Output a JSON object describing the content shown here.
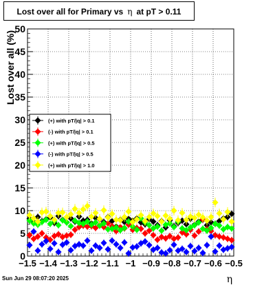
{
  "title": {
    "prefix": "Lost over all for Primary vs",
    "eta_symbol": "η",
    "suffix": "at pT > 0.11"
  },
  "footer": {
    "timestamp": "Sun Jun 29 08:07:20 2025"
  },
  "colors": {
    "black": "#000000",
    "red": "#ff0000",
    "green": "#00ff00",
    "blue": "#0000ff",
    "yellow": "#ffff00"
  },
  "chart_data": {
    "type": "scatter",
    "title": "Lost over all for Primary vs η at pT > 0.11",
    "xlabel": "η",
    "ylabel": "Lost over all (%)",
    "xlim": [
      -1.5,
      -0.5
    ],
    "ylim": [
      0,
      50
    ],
    "x_ticks": [
      -1.5,
      -1.4,
      -1.3,
      -1.2,
      -1.1,
      -1,
      -0.9,
      -0.8,
      -0.7,
      -0.6,
      -0.5
    ],
    "x_tick_labels": [
      "−1.5",
      "−1.4",
      "−1.3",
      "−1.2",
      "−1.1",
      "−1",
      "−0.9",
      "−0.8",
      "−0.7",
      "−0.6",
      "−0.5"
    ],
    "y_ticks": [
      0,
      5,
      10,
      15,
      20,
      25,
      30,
      35,
      40,
      45,
      50
    ],
    "grid": true,
    "legend_position": "left-middle",
    "series": [
      {
        "name": "(+) with pT/|q| > 0.1",
        "color": "#000000",
        "x": [
          -1.49,
          -1.47,
          -1.45,
          -1.43,
          -1.41,
          -1.39,
          -1.37,
          -1.35,
          -1.33,
          -1.31,
          -1.29,
          -1.27,
          -1.25,
          -1.23,
          -1.21,
          -1.19,
          -1.17,
          -1.15,
          -1.13,
          -1.11,
          -1.09,
          -1.07,
          -1.05,
          -1.03,
          -1.01,
          -0.99,
          -0.97,
          -0.95,
          -0.93,
          -0.91,
          -0.89,
          -0.87,
          -0.85,
          -0.83,
          -0.81,
          -0.79,
          -0.77,
          -0.75,
          -0.73,
          -0.71,
          -0.69,
          -0.67,
          -0.65,
          -0.63,
          -0.61,
          -0.59,
          -0.57,
          -0.55,
          -0.53,
          -0.51
        ],
        "y": [
          8.2,
          7.5,
          8.6,
          7.7,
          8.1,
          8.5,
          7.3,
          8.8,
          8.0,
          7.4,
          8.3,
          7.6,
          8.7,
          7.8,
          8.0,
          7.2,
          8.4,
          8.1,
          7.5,
          8.6,
          7.7,
          6.5,
          8.0,
          7.5,
          8.2,
          7.8,
          8.3,
          7.4,
          7.0,
          8.1,
          7.6,
          6.8,
          7.7,
          6.3,
          7.9,
          6.6,
          7.3,
          7.8,
          7.0,
          8.2,
          6.9,
          7.6,
          8.0,
          6.8,
          7.4,
          7.1,
          7.7,
          8.3,
          8.6,
          9.3
        ]
      },
      {
        "name": "(-) with pT/|q| > 0.1",
        "color": "#ff0000",
        "x": [
          -1.49,
          -1.47,
          -1.45,
          -1.43,
          -1.41,
          -1.39,
          -1.37,
          -1.35,
          -1.33,
          -1.31,
          -1.29,
          -1.27,
          -1.25,
          -1.23,
          -1.21,
          -1.19,
          -1.17,
          -1.15,
          -1.13,
          -1.11,
          -1.09,
          -1.07,
          -1.05,
          -1.03,
          -1.01,
          -0.99,
          -0.97,
          -0.95,
          -0.93,
          -0.91,
          -0.89,
          -0.87,
          -0.85,
          -0.83,
          -0.81,
          -0.79,
          -0.77,
          -0.75,
          -0.73,
          -0.71,
          -0.69,
          -0.67,
          -0.65,
          -0.63,
          -0.61,
          -0.59,
          -0.57,
          -0.55,
          -0.53,
          -0.51
        ],
        "y": [
          4.6,
          3.8,
          4.3,
          5.0,
          4.1,
          3.6,
          4.4,
          4.8,
          4.2,
          4.5,
          4.7,
          5.8,
          6.4,
          6.7,
          6.5,
          6.6,
          6.2,
          6.8,
          6.4,
          7.2,
          6.6,
          5.5,
          6.4,
          6.1,
          6.9,
          5.8,
          6.2,
          6.0,
          5.0,
          5.6,
          4.6,
          3.6,
          4.2,
          3.9,
          4.4,
          3.8,
          4.1,
          5.2,
          4.8,
          5.8,
          4.5,
          5.4,
          8.1,
          5.9,
          5.5,
          4.6,
          4.3,
          4.1,
          3.8,
          3.5
        ]
      },
      {
        "name": "(+) with pT/|q| > 0.5",
        "color": "#00ff00",
        "x": [
          -1.49,
          -1.47,
          -1.45,
          -1.43,
          -1.41,
          -1.39,
          -1.37,
          -1.35,
          -1.33,
          -1.31,
          -1.29,
          -1.27,
          -1.25,
          -1.23,
          -1.21,
          -1.19,
          -1.17,
          -1.15,
          -1.13,
          -1.11,
          -1.09,
          -1.07,
          -1.05,
          -1.03,
          -1.01,
          -0.99,
          -0.97,
          -0.95,
          -0.93,
          -0.91,
          -0.89,
          -0.87,
          -0.85,
          -0.83,
          -0.81,
          -0.79,
          -0.77,
          -0.75,
          -0.73,
          -0.71,
          -0.69,
          -0.67,
          -0.65,
          -0.63,
          -0.61,
          -0.59,
          -0.57,
          -0.55,
          -0.53,
          -0.51
        ],
        "y": [
          7.8,
          7.2,
          6.9,
          7.5,
          8.0,
          7.1,
          7.7,
          6.8,
          7.9,
          7.4,
          6.6,
          7.8,
          7.3,
          7.1,
          7.6,
          6.9,
          7.4,
          6.7,
          7.2,
          5.9,
          6.0,
          6.3,
          5.7,
          6.2,
          7.6,
          6.5,
          5.8,
          8.3,
          7.4,
          6.8,
          6.1,
          6.5,
          5.6,
          6.9,
          7.2,
          6.4,
          7.6,
          6.1,
          5.7,
          6.3,
          6.8,
          7.4,
          6.0,
          5.6,
          6.2,
          7.1,
          6.7,
          5.9,
          6.4,
          6.1
        ]
      },
      {
        "name": "(-) with pT/|q| > 0.5",
        "color": "#0000ff",
        "x": [
          -1.49,
          -1.47,
          -1.45,
          -1.43,
          -1.41,
          -1.39,
          -1.37,
          -1.35,
          -1.33,
          -1.31,
          -1.29,
          -1.27,
          -1.25,
          -1.23,
          -1.21,
          -1.19,
          -1.17,
          -1.15,
          -1.13,
          -1.11,
          -1.09,
          -1.07,
          -1.05,
          -1.03,
          -1.01,
          -0.99,
          -0.97,
          -0.95,
          -0.93,
          -0.91,
          -0.89,
          -0.87,
          -0.85,
          -0.83,
          -0.81,
          -0.79,
          -0.77,
          -0.75,
          -0.73,
          -0.71,
          -0.69,
          -0.67,
          -0.65,
          -0.63,
          -0.61,
          -0.59,
          -0.57,
          -0.55,
          -0.53,
          -0.51
        ],
        "y": [
          2.4,
          5.4,
          1.2,
          2.6,
          3.3,
          1.6,
          2.8,
          0.9,
          2.5,
          3.0,
          1.3,
          2.2,
          2.6,
          2.3,
          3.4,
          1.2,
          2.3,
          1.8,
          2.9,
          1.5,
          3.4,
          2.6,
          1.8,
          3.0,
          0.6,
          1.9,
          2.1,
          2.8,
          3.2,
          2.4,
          1.4,
          1.8,
          0.8,
          0.6,
          1.3,
          2.5,
          1.2,
          1.6,
          0.9,
          2.2,
          1.1,
          1.8,
          0.7,
          2.4,
          4.3,
          1.0,
          2.3,
          1.4,
          1.7,
          2.0
        ]
      },
      {
        "name": "(+) with pT/|q| > 1.0",
        "color": "#ffff00",
        "x": [
          -1.49,
          -1.47,
          -1.45,
          -1.43,
          -1.41,
          -1.39,
          -1.37,
          -1.35,
          -1.33,
          -1.31,
          -1.29,
          -1.27,
          -1.25,
          -1.23,
          -1.21,
          -1.19,
          -1.17,
          -1.15,
          -1.13,
          -1.11,
          -1.09,
          -1.07,
          -1.05,
          -1.03,
          -1.01,
          -0.99,
          -0.97,
          -0.95,
          -0.93,
          -0.91,
          -0.89,
          -0.87,
          -0.85,
          -0.83,
          -0.81,
          -0.79,
          -0.77,
          -0.75,
          -0.73,
          -0.71,
          -0.69,
          -0.67,
          -0.65,
          -0.63,
          -0.61,
          -0.59,
          -0.57,
          -0.55,
          -0.53,
          -0.51
        ],
        "y": [
          9.0,
          8.3,
          7.6,
          9.6,
          9.8,
          8.8,
          8.0,
          9.5,
          9.6,
          8.6,
          9.2,
          10.4,
          9.5,
          10.3,
          11.0,
          8.7,
          9.5,
          8.2,
          10.1,
          8.5,
          9.3,
          8.0,
          7.9,
          8.6,
          9.8,
          7.5,
          8.1,
          9.0,
          7.7,
          8.6,
          9.4,
          8.8,
          7.6,
          8.9,
          8.2,
          10.0,
          7.9,
          9.5,
          8.0,
          8.7,
          8.4,
          9.1,
          8.5,
          7.8,
          8.6,
          11.8,
          9.4,
          8.1,
          9.7,
          7.6
        ]
      }
    ]
  }
}
